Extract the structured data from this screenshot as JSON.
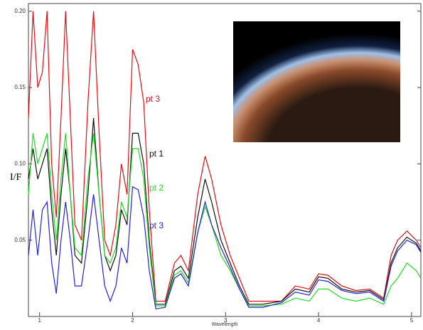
{
  "chart_data": {
    "type": "line",
    "x_label": "Wavelength",
    "y_label": "I/F",
    "x": [
      0.88,
      0.93,
      0.98,
      1.03,
      1.08,
      1.13,
      1.18,
      1.23,
      1.28,
      1.33,
      1.38,
      1.45,
      1.52,
      1.58,
      1.64,
      1.7,
      1.76,
      1.82,
      1.88,
      1.94,
      2.0,
      2.06,
      2.12,
      2.18,
      2.25,
      2.35,
      2.45,
      2.52,
      2.6,
      2.7,
      2.78,
      2.85,
      2.95,
      3.05,
      3.15,
      3.25,
      3.4,
      3.6,
      3.75,
      3.9,
      4.0,
      4.1,
      4.25,
      4.4,
      4.55,
      4.7,
      4.78,
      4.85,
      4.95,
      5.05,
      5.1
    ],
    "series": [
      {
        "name": "pt 3",
        "color": "#e01010",
        "values": [
          0.13,
          0.2,
          0.15,
          0.16,
          0.2,
          0.1,
          0.065,
          0.13,
          0.2,
          0.13,
          0.06,
          0.05,
          0.14,
          0.2,
          0.12,
          0.05,
          0.04,
          0.06,
          0.1,
          0.08,
          0.175,
          0.165,
          0.14,
          0.07,
          0.01,
          0.01,
          0.035,
          0.04,
          0.03,
          0.08,
          0.105,
          0.09,
          0.06,
          0.04,
          0.025,
          0.01,
          0.01,
          0.01,
          0.02,
          0.018,
          0.028,
          0.027,
          0.02,
          0.017,
          0.018,
          0.012,
          0.04,
          0.05,
          0.056,
          0.05,
          0.045
        ]
      },
      {
        "name": "pt 1",
        "color": "#111111",
        "values": [
          0.09,
          0.11,
          0.09,
          0.1,
          0.11,
          0.07,
          0.04,
          0.08,
          0.11,
          0.08,
          0.04,
          0.035,
          0.08,
          0.13,
          0.08,
          0.04,
          0.03,
          0.04,
          0.07,
          0.06,
          0.12,
          0.12,
          0.1,
          0.05,
          0.008,
          0.008,
          0.03,
          0.033,
          0.025,
          0.065,
          0.09,
          0.075,
          0.05,
          0.035,
          0.02,
          0.008,
          0.008,
          0.01,
          0.018,
          0.016,
          0.026,
          0.025,
          0.018,
          0.016,
          0.017,
          0.011,
          0.035,
          0.045,
          0.052,
          0.048,
          0.043
        ]
      },
      {
        "name": "pt 2",
        "color": "#22dd22",
        "values": [
          0.08,
          0.12,
          0.1,
          0.11,
          0.12,
          0.08,
          0.05,
          0.09,
          0.12,
          0.08,
          0.045,
          0.04,
          0.09,
          0.12,
          0.08,
          0.04,
          0.035,
          0.045,
          0.075,
          0.065,
          0.11,
          0.11,
          0.09,
          0.045,
          0.007,
          0.007,
          0.027,
          0.03,
          0.022,
          0.055,
          0.072,
          0.06,
          0.04,
          0.03,
          0.018,
          0.007,
          0.007,
          0.008,
          0.012,
          0.01,
          0.018,
          0.018,
          0.012,
          0.01,
          0.012,
          0.008,
          0.02,
          0.025,
          0.035,
          0.03,
          0.025
        ]
      },
      {
        "name": "pt 3",
        "color": "#2222dd",
        "values": [
          0.04,
          0.07,
          0.04,
          0.07,
          0.075,
          0.035,
          0.015,
          0.05,
          0.075,
          0.05,
          0.02,
          0.02,
          0.05,
          0.08,
          0.05,
          0.02,
          0.01,
          0.02,
          0.045,
          0.035,
          0.085,
          0.083,
          0.065,
          0.03,
          0.005,
          0.006,
          0.025,
          0.028,
          0.02,
          0.055,
          0.075,
          0.06,
          0.045,
          0.032,
          0.018,
          0.006,
          0.006,
          0.009,
          0.016,
          0.014,
          0.024,
          0.023,
          0.017,
          0.015,
          0.016,
          0.01,
          0.033,
          0.043,
          0.05,
          0.047,
          0.042
        ]
      }
    ],
    "xlim": [
      0.88,
      5.1
    ],
    "xticks": [
      1,
      2,
      3,
      4,
      5
    ],
    "ylim": [
      0,
      0.205
    ],
    "yticks": [
      0.05,
      {
        "value": 0.1,
        "label": "0.10"
      },
      0.15,
      {
        "value": 0.2,
        "label": "0.20"
      }
    ]
  }
}
